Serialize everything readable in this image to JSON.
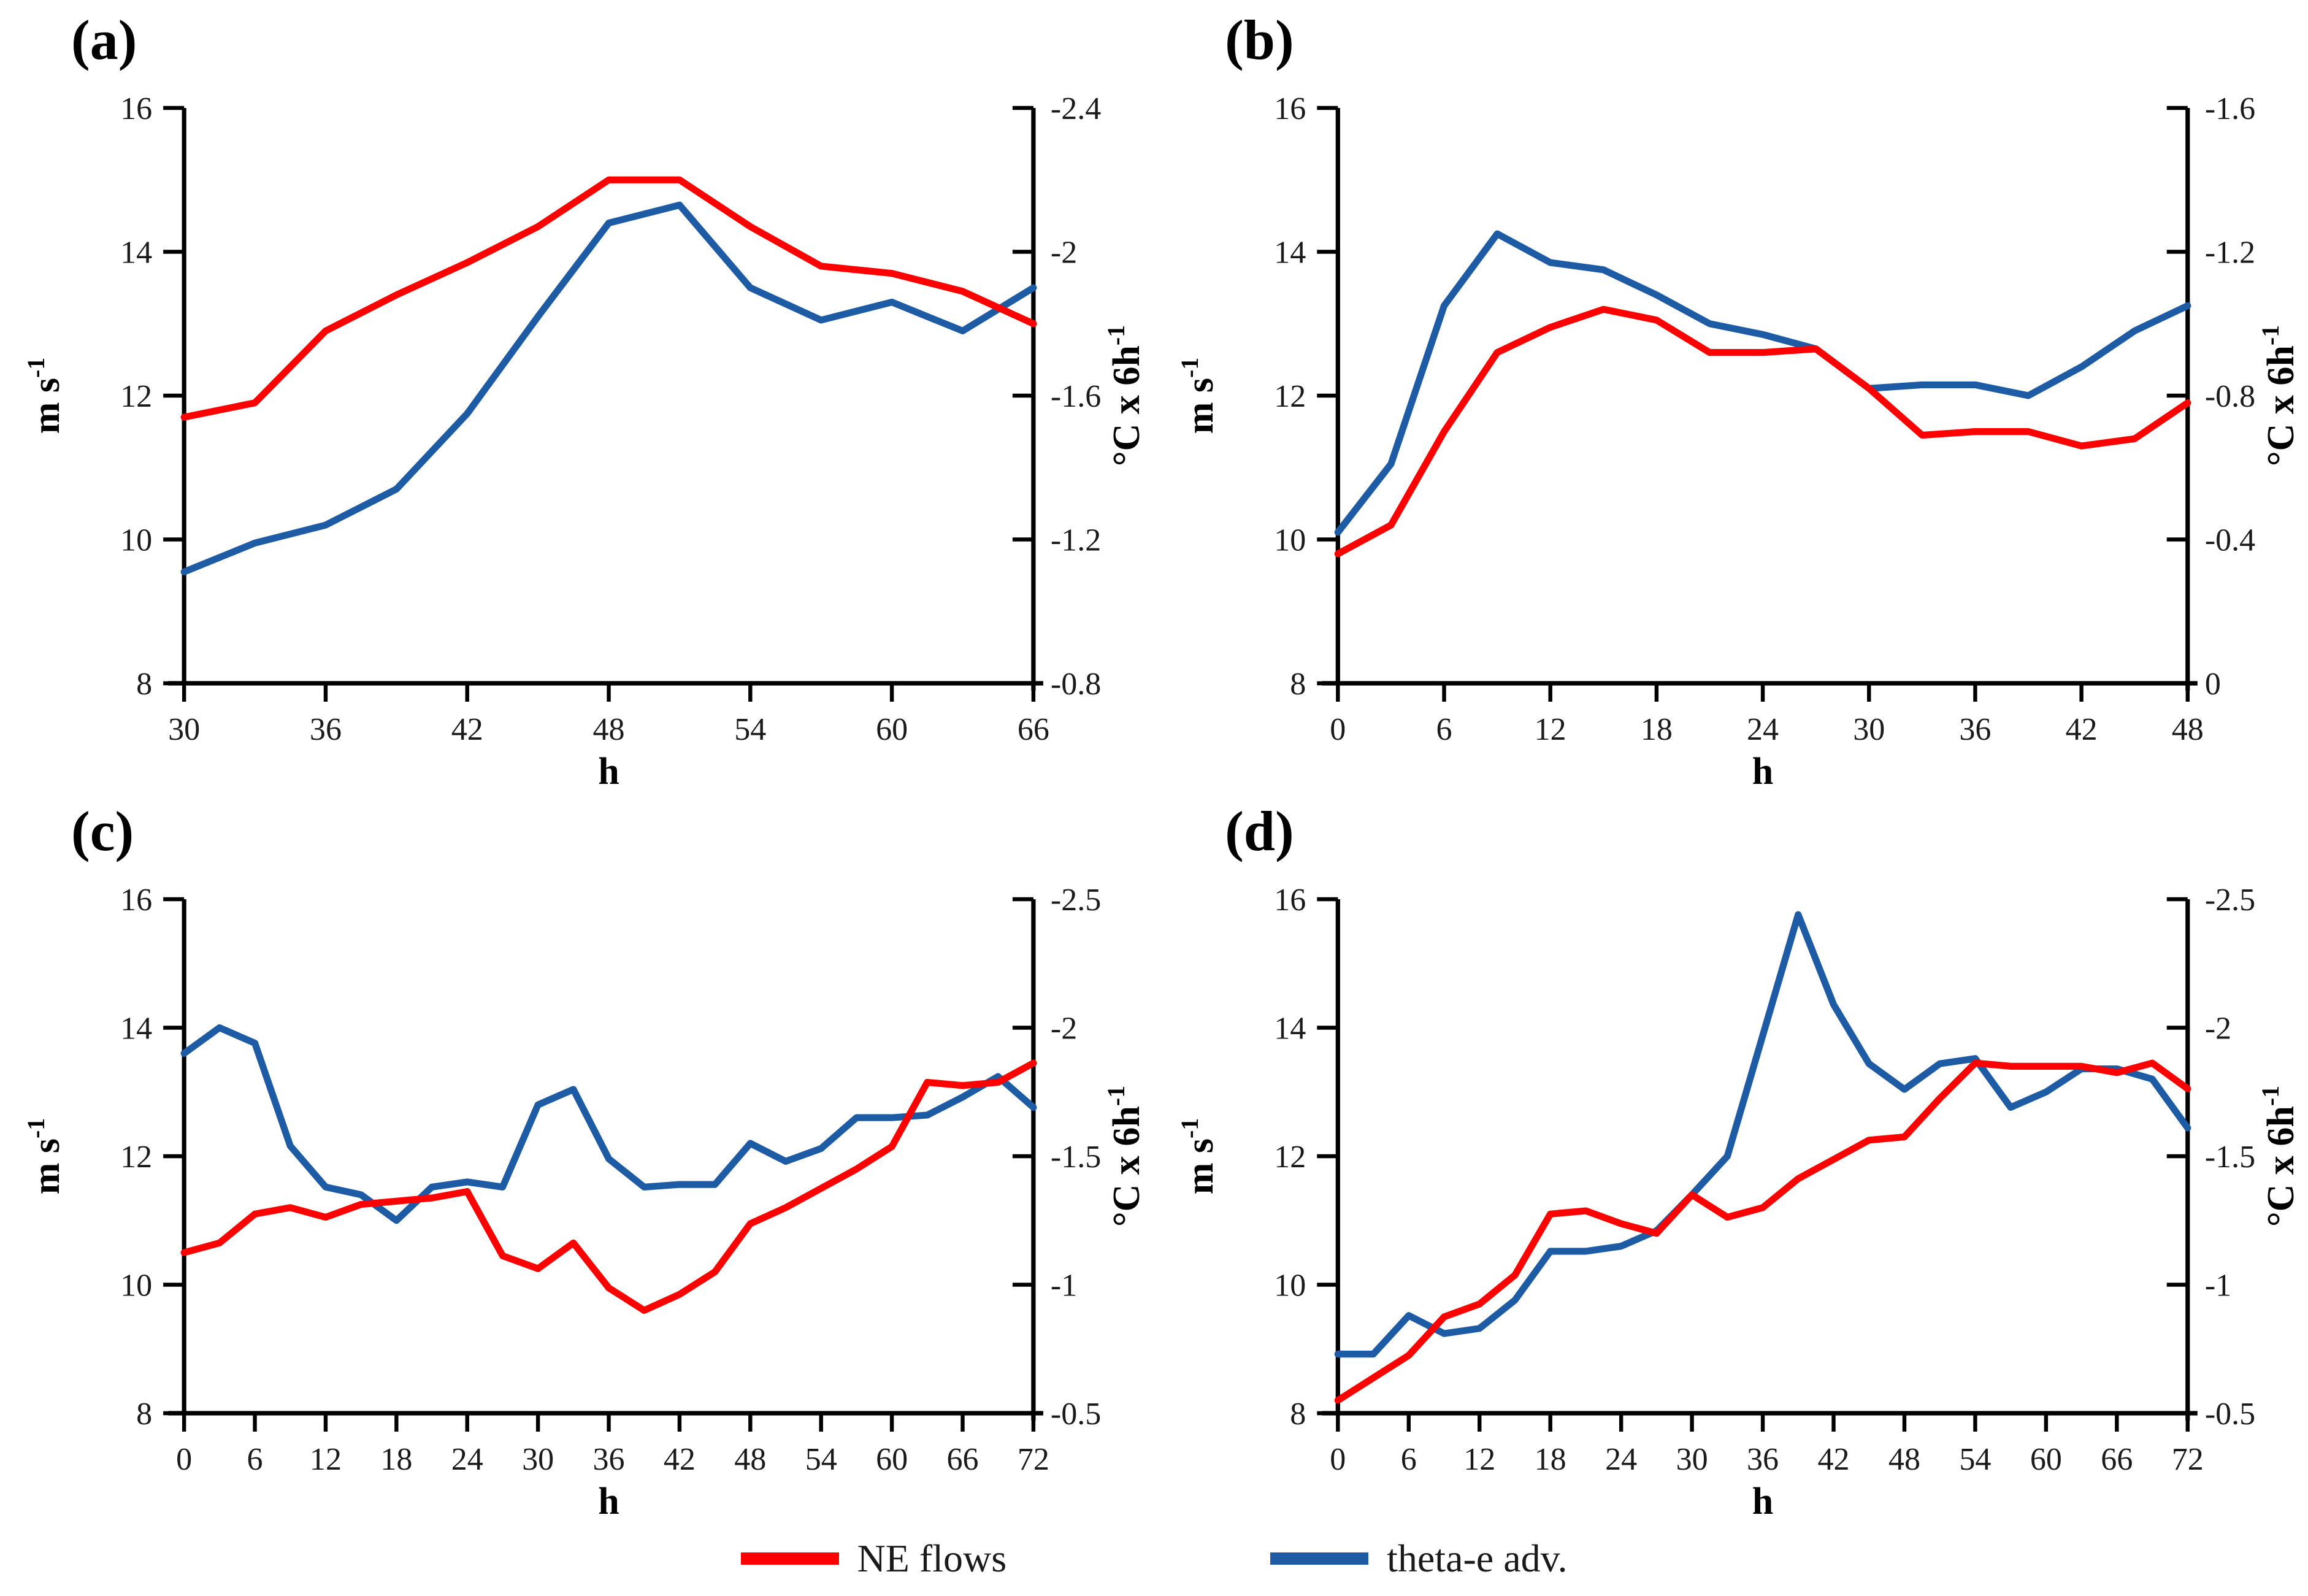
{
  "figure": {
    "background": "#ffffff",
    "type_note": "four-panel dual-axis line figure"
  },
  "colors": {
    "red": "#fe0000",
    "blue": "#1d5ba4",
    "axis": "#000000"
  },
  "axes_common": {
    "x_title": "h",
    "left_axis_title": {
      "base": "m s",
      "sup": "-1"
    },
    "right_axis_title": {
      "base": "°C x 6h",
      "sup": "-1"
    }
  },
  "legend": {
    "items": [
      {
        "label": "NE flows",
        "color_key": "red"
      },
      {
        "label": "theta-e adv.",
        "color_key": "blue"
      }
    ]
  },
  "chart_data": [
    {
      "id": "a",
      "type": "line",
      "label": "(a)",
      "xlabel": "h",
      "x_min": 30,
      "x_max": 66,
      "x_ticks": [
        30,
        36,
        42,
        48,
        54,
        60,
        66
      ],
      "x": [
        30,
        33,
        36,
        39,
        42,
        45,
        48,
        51,
        54,
        57,
        60,
        63,
        66
      ],
      "left_axis": {
        "min": 8,
        "max": 16,
        "ticks": [
          8,
          10,
          12,
          14,
          16
        ]
      },
      "right_axis": {
        "bottom": -0.8,
        "top": -2.4,
        "ticks": [
          -2.4,
          -2,
          -1.6,
          -1.2,
          -0.8
        ],
        "tick_labels": [
          "-2.4",
          "-2",
          "-1.6",
          "-1.2",
          "-0.8"
        ]
      },
      "series": [
        {
          "name": "NE flows",
          "axis": "left",
          "color_key": "red",
          "values": [
            11.7,
            11.9,
            12.9,
            13.4,
            13.85,
            14.35,
            15.0,
            15.0,
            14.35,
            13.8,
            13.7,
            13.45,
            13.0
          ]
        },
        {
          "name": "theta-e adv.",
          "axis": "right",
          "color_key": "blue",
          "values": [
            -1.11,
            -1.19,
            -1.24,
            -1.34,
            -1.55,
            -1.82,
            -2.08,
            -2.13,
            -1.9,
            -1.81,
            -1.86,
            -1.78,
            -1.9
          ]
        }
      ]
    },
    {
      "id": "b",
      "type": "line",
      "label": "(b)",
      "xlabel": "h",
      "x_min": 0,
      "x_max": 48,
      "x_ticks": [
        0,
        6,
        12,
        18,
        24,
        30,
        36,
        42,
        48
      ],
      "x": [
        0,
        3,
        6,
        9,
        12,
        15,
        18,
        21,
        24,
        27,
        30,
        33,
        36,
        39,
        42,
        45,
        48
      ],
      "left_axis": {
        "min": 8,
        "max": 16,
        "ticks": [
          8,
          10,
          12,
          14,
          16
        ]
      },
      "right_axis": {
        "bottom": 0,
        "top": -1.6,
        "ticks": [
          -1.6,
          -1.2,
          -0.8,
          -0.4,
          0
        ],
        "tick_labels": [
          "-1.6",
          "-1.2",
          "-0.8",
          "-0.4",
          "0"
        ]
      },
      "series": [
        {
          "name": "NE flows",
          "axis": "left",
          "color_key": "red",
          "values": [
            9.8,
            10.2,
            11.5,
            12.6,
            12.95,
            13.2,
            13.05,
            12.6,
            12.6,
            12.65,
            12.1,
            11.45,
            11.5,
            11.5,
            11.3,
            11.4,
            11.9
          ]
        },
        {
          "name": "theta-e adv.",
          "axis": "right",
          "color_key": "blue",
          "values": [
            -0.42,
            -0.61,
            -1.05,
            -1.25,
            -1.17,
            -1.15,
            -1.08,
            -1.0,
            -0.97,
            -0.93,
            -0.82,
            -0.83,
            -0.83,
            -0.8,
            -0.88,
            -0.98,
            -1.05
          ]
        }
      ]
    },
    {
      "id": "c",
      "type": "line",
      "label": "(c)",
      "xlabel": "h",
      "x_min": 0,
      "x_max": 72,
      "x_ticks": [
        0,
        6,
        12,
        18,
        24,
        30,
        36,
        42,
        48,
        54,
        60,
        66,
        72
      ],
      "x": [
        0,
        3,
        6,
        9,
        12,
        15,
        18,
        21,
        24,
        27,
        30,
        33,
        36,
        39,
        42,
        45,
        48,
        51,
        54,
        57,
        60,
        63,
        66,
        69,
        72
      ],
      "left_axis": {
        "min": 8,
        "max": 16,
        "ticks": [
          8,
          10,
          12,
          14,
          16
        ]
      },
      "right_axis": {
        "bottom": -0.5,
        "top": -2.5,
        "ticks": [
          -2.5,
          -2,
          -1.5,
          -1,
          -0.5
        ],
        "tick_labels": [
          "-2.5",
          "-2",
          "-1.5",
          "-1",
          "-0.5"
        ]
      },
      "series": [
        {
          "name": "NE flows",
          "axis": "left",
          "color_key": "red",
          "values": [
            10.5,
            10.65,
            11.1,
            11.2,
            11.05,
            11.25,
            11.3,
            11.35,
            11.45,
            10.45,
            10.25,
            10.65,
            9.95,
            9.6,
            9.85,
            10.2,
            10.95,
            11.2,
            11.5,
            11.8,
            12.15,
            13.15,
            13.1,
            13.15,
            13.45
          ]
        },
        {
          "name": "theta-e adv.",
          "axis": "right",
          "color_key": "blue",
          "values": [
            -1.9,
            -2.0,
            -1.94,
            -1.54,
            -1.38,
            -1.35,
            -1.25,
            -1.38,
            -1.4,
            -1.38,
            -1.7,
            -1.76,
            -1.49,
            -1.38,
            -1.39,
            -1.39,
            -1.55,
            -1.48,
            -1.53,
            -1.65,
            -1.65,
            -1.66,
            -1.73,
            -1.81,
            -1.69
          ]
        }
      ]
    },
    {
      "id": "d",
      "type": "line",
      "label": "(d)",
      "xlabel": "h",
      "x_min": 0,
      "x_max": 72,
      "x_ticks": [
        0,
        6,
        12,
        18,
        24,
        30,
        36,
        42,
        48,
        54,
        60,
        66,
        72
      ],
      "x": [
        0,
        3,
        6,
        9,
        12,
        15,
        18,
        21,
        24,
        27,
        30,
        33,
        36,
        39,
        42,
        45,
        48,
        51,
        54,
        57,
        60,
        63,
        66,
        69,
        72
      ],
      "left_axis": {
        "min": 8,
        "max": 16,
        "ticks": [
          8,
          10,
          12,
          14,
          16
        ]
      },
      "right_axis": {
        "bottom": -0.5,
        "top": -2.5,
        "ticks": [
          -2.5,
          -2,
          -1.5,
          -1,
          -0.5
        ],
        "tick_labels": [
          "-2.5",
          "-2",
          "-1.5",
          "-1",
          "-0.5"
        ]
      },
      "series": [
        {
          "name": "NE flows",
          "axis": "left",
          "color_key": "red",
          "values": [
            8.2,
            8.55,
            8.9,
            9.5,
            9.7,
            10.15,
            11.1,
            11.15,
            10.95,
            10.8,
            11.4,
            11.05,
            11.2,
            11.65,
            11.95,
            12.25,
            12.3,
            12.9,
            13.45,
            13.4,
            13.4,
            13.4,
            13.3,
            13.45,
            13.05
          ]
        },
        {
          "name": "theta-e adv.",
          "axis": "right",
          "color_key": "blue",
          "values": [
            -0.73,
            -0.73,
            -0.88,
            -0.81,
            -0.83,
            -0.94,
            -1.13,
            -1.13,
            -1.15,
            -1.21,
            -1.35,
            -1.5,
            -1.97,
            -2.44,
            -2.09,
            -1.86,
            -1.76,
            -1.86,
            -1.88,
            -1.69,
            -1.75,
            -1.84,
            -1.84,
            -1.8,
            -1.61
          ]
        }
      ]
    }
  ]
}
